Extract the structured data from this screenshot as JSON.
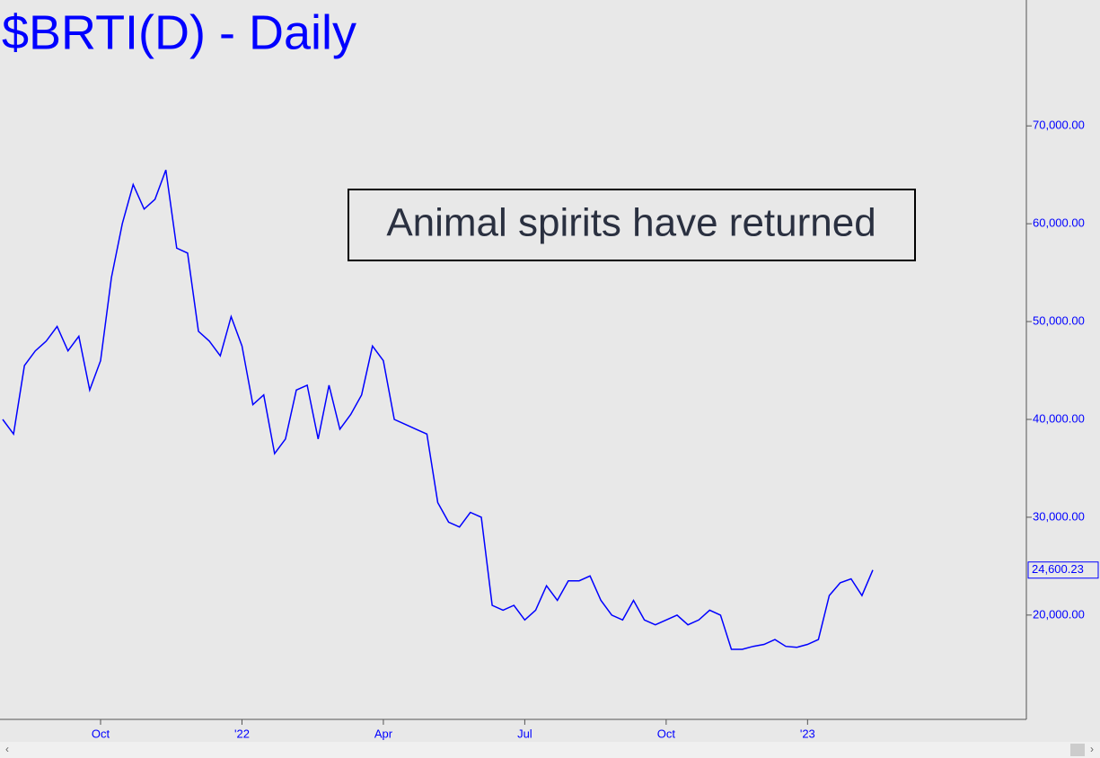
{
  "chart_data": {
    "type": "line",
    "title": "$BRTI(D) - Daily",
    "annotation": "Animal spirits have returned",
    "categories": [
      null,
      null,
      null,
      null,
      null,
      null,
      null,
      null,
      null,
      "Oct",
      null,
      null,
      null,
      null,
      null,
      null,
      null,
      null,
      null,
      null,
      null,
      null,
      "'22",
      null,
      null,
      null,
      null,
      null,
      null,
      null,
      null,
      null,
      null,
      null,
      null,
      "Apr",
      null,
      null,
      null,
      null,
      null,
      null,
      null,
      null,
      null,
      null,
      null,
      null,
      "Jul",
      null,
      null,
      null,
      null,
      null,
      null,
      null,
      null,
      null,
      null,
      null,
      null,
      "Oct",
      null,
      null,
      null,
      null,
      null,
      null,
      null,
      null,
      null,
      null,
      null,
      null,
      "'23",
      null,
      null,
      null,
      null,
      null,
      null
    ],
    "series": [
      {
        "color": "#0000ff",
        "values": [
          40000,
          38500,
          45500,
          47000,
          48000,
          49500,
          47000,
          48500,
          43000,
          46000,
          54500,
          60000,
          64000,
          61500,
          62500,
          65500,
          57500,
          57000,
          49000,
          48000,
          46500,
          50500,
          47500,
          41500,
          42500,
          36500,
          38000,
          43000,
          43500,
          38000,
          43500,
          39000,
          40500,
          42500,
          47500,
          46000,
          40000,
          39500,
          39000,
          38500,
          31500,
          29500,
          29000,
          30500,
          30000,
          21000,
          20500,
          21000,
          19500,
          20500,
          23000,
          21500,
          23500,
          23500,
          24000,
          21500,
          20000,
          19500,
          21500,
          19500,
          19000,
          19500,
          20000,
          19000,
          19500,
          20500,
          20000,
          16500,
          16500,
          16800,
          17000,
          17500,
          16800,
          16700,
          17000,
          17500,
          22000,
          23300,
          23700,
          22000,
          24600.23
        ],
        "value_labels": [
          null,
          null,
          null,
          null,
          null,
          null,
          null,
          null,
          null,
          null,
          null,
          null,
          null,
          null,
          null,
          null,
          null,
          null,
          null,
          null,
          null,
          null,
          null,
          null,
          null,
          null,
          null,
          null,
          null,
          null,
          null,
          null,
          null,
          null,
          null,
          null,
          null,
          null,
          null,
          null,
          null,
          null,
          null,
          null,
          null,
          null,
          null,
          null,
          null,
          null,
          null,
          null,
          null,
          null,
          null,
          null,
          null,
          null,
          null,
          null,
          null,
          null,
          null,
          null,
          null,
          null,
          null,
          null,
          null,
          null,
          null,
          null,
          null,
          null,
          null,
          null,
          null,
          null,
          null,
          null,
          "24,600.23"
        ]
      }
    ],
    "ylim": [
      9338,
      82868
    ],
    "yticks": [
      {
        "value": 20000,
        "label": "20,000.00"
      },
      {
        "value": 30000,
        "label": "30,000.00"
      },
      {
        "value": 40000,
        "label": "40,000.00"
      },
      {
        "value": 50000,
        "label": "50,000.00"
      },
      {
        "value": 60000,
        "label": "60,000.00"
      },
      {
        "value": 70000,
        "label": "70,000.00"
      }
    ]
  }
}
